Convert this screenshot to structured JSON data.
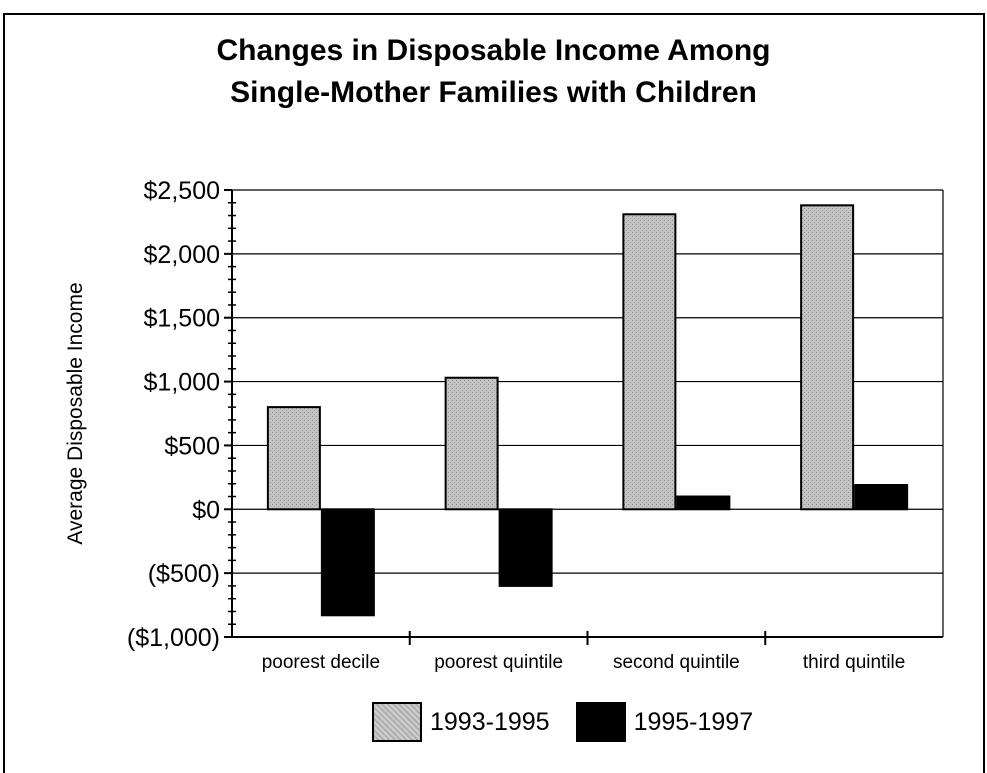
{
  "chart_data": {
    "type": "bar",
    "title_lines": [
      "Changes in Disposable Income Among",
      "Single-Mother Families with Children"
    ],
    "ylabel": "Average Disposable Income",
    "xlabel": "",
    "categories": [
      "poorest decile",
      "poorest quintile",
      "second quintile",
      "third quintile"
    ],
    "series": [
      {
        "name": "1993-1995",
        "values": [
          800,
          1030,
          2310,
          2380
        ],
        "color": "#bdbdbd"
      },
      {
        "name": "1995-1997",
        "values": [
          -830,
          -600,
          100,
          190
        ],
        "color": "#000000"
      }
    ],
    "ylim": [
      -1000,
      2500
    ],
    "yticks": [
      -1000,
      -500,
      0,
      500,
      1000,
      1500,
      2000,
      2500
    ],
    "ytick_labels": [
      "($1,000)",
      "($500)",
      "$0",
      "$500",
      "$1,000",
      "$1,500",
      "$2,000",
      "$2,500"
    ],
    "grid": true,
    "legend_position": "bottom"
  }
}
